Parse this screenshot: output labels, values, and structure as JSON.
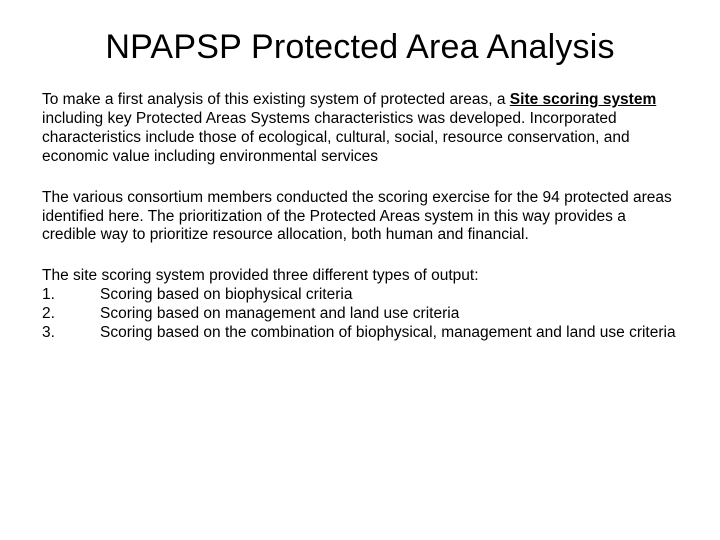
{
  "title": "NPAPSP Protected Area Analysis",
  "para1_pre": "To make a first analysis of this existing system of protected areas, a ",
  "para1_emph": "Site scoring system ",
  "para1_post": "including key Protected Areas Systems characteristics was developed. Incorporated characteristics include those of ecological, cultural, social, resource conservation, and economic value including environmental services",
  "para2": "The various consortium members conducted the scoring exercise for the 94 protected areas identified here. The prioritization of the Protected Areas system in this way provides a credible way to prioritize resource allocation, both human and financial.",
  "outputs_intro": "The site scoring system provided three different types of output:",
  "outputs": [
    {
      "num": "1.",
      "text": "Scoring based on biophysical criteria"
    },
    {
      "num": "2.",
      "text": "Scoring based on management and land use criteria"
    },
    {
      "num": "3.",
      "text": "Scoring based on the combination of biophysical, management and land use criteria"
    }
  ]
}
